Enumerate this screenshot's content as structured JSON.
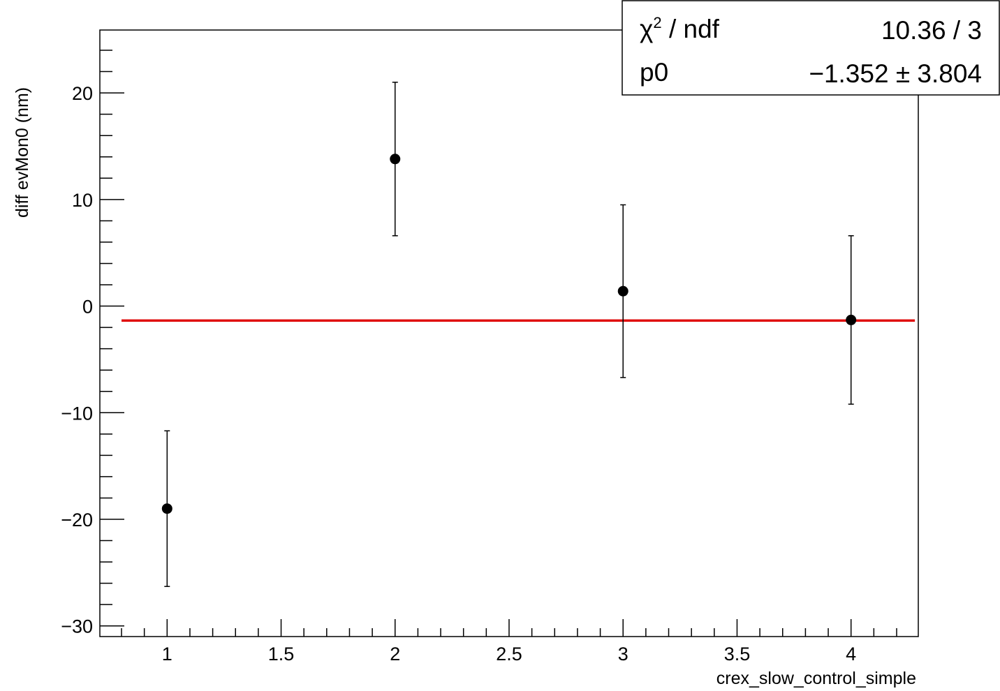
{
  "chart_data": {
    "type": "scatter",
    "xlabel": "crex_slow_control_simple",
    "ylabel": "diff evMon0 (nm)",
    "xlim": [
      0.705,
      4.295
    ],
    "ylim": [
      -31.0,
      25.9
    ],
    "x_ticks": [
      1,
      1.5,
      2,
      2.5,
      3,
      3.5,
      4
    ],
    "x_tick_labels": [
      "1",
      "1.5",
      "2",
      "2.5",
      "3",
      "3.5",
      "4"
    ],
    "y_ticks": [
      -30,
      -20,
      -10,
      0,
      10,
      20
    ],
    "y_tick_labels": [
      "−30",
      "−20",
      "−10",
      "0",
      "10",
      "20"
    ],
    "series": [
      {
        "x": [
          1,
          2,
          3,
          4
        ],
        "y": [
          -19.0,
          13.8,
          1.4,
          -1.3
        ],
        "yerr": [
          7.3,
          7.2,
          8.1,
          7.9
        ],
        "color": "#000000"
      }
    ],
    "fit": {
      "value": -1.352,
      "color": "#e01010"
    },
    "stats_box": {
      "rows": [
        {
          "label_main": "χ",
          "label_sup": "2",
          "label_rest": " / ndf",
          "value": "10.36 / 3"
        },
        {
          "label_main": "p0",
          "label_sup": "",
          "label_rest": "",
          "value": "−1.352 ± 3.804"
        }
      ]
    }
  }
}
